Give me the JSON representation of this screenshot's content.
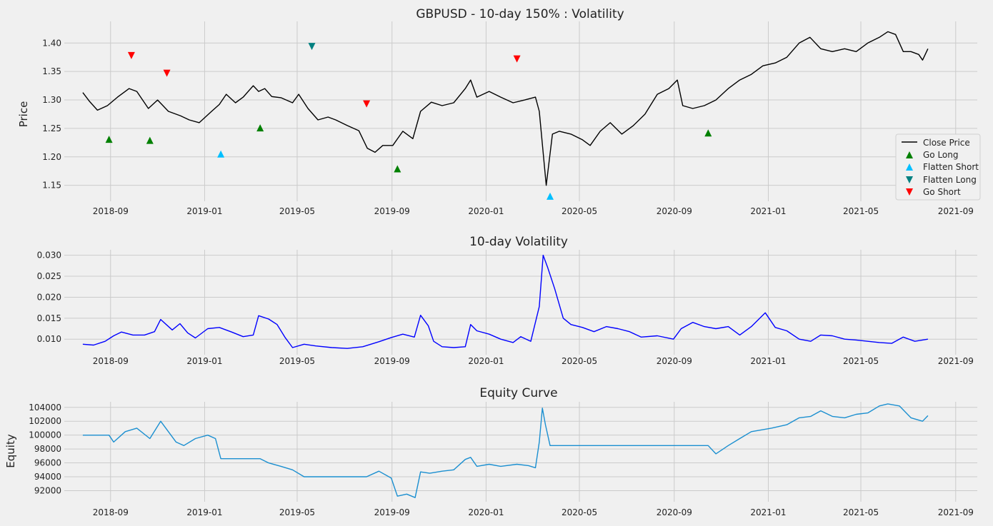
{
  "figure": {
    "background": "#f0f0f0",
    "plot_background": "#f0f0f0",
    "grid_color": "#cbcbcb"
  },
  "chart_data": [
    {
      "type": "line",
      "title": "GBPUSD - 10-day 150% : Volatility",
      "xlabel": "",
      "ylabel": "Price",
      "xlim": [
        "2018-07-03",
        "2021-09-29"
      ],
      "ylim": [
        1.122,
        1.438
      ],
      "x_ticks": [
        "2018-09-01",
        "2019-01-01",
        "2019-05-01",
        "2019-09-01",
        "2020-01-01",
        "2020-05-01",
        "2020-09-01",
        "2021-01-01",
        "2021-05-01",
        "2021-09-01"
      ],
      "x_tick_labels": [
        "2018-09",
        "2019-01",
        "2019-05",
        "2019-09",
        "2020-01",
        "2020-05",
        "2020-09",
        "2021-01",
        "2021-05",
        "2021-09"
      ],
      "y_ticks": [
        1.15,
        1.2,
        1.25,
        1.3,
        1.35,
        1.4
      ],
      "y_tick_labels": [
        "1.15",
        "1.20",
        "1.25",
        "1.30",
        "1.35",
        "1.40"
      ],
      "grid": true,
      "legend": "right",
      "series": [
        {
          "name": "Close Price",
          "color": "#000000",
          "kind": "line",
          "x": [
            "2018-07-27",
            "2018-08-05",
            "2018-08-15",
            "2018-08-28",
            "2018-09-10",
            "2018-09-25",
            "2018-10-05",
            "2018-10-20",
            "2018-11-01",
            "2018-11-15",
            "2018-12-01",
            "2018-12-12",
            "2018-12-25",
            "2019-01-10",
            "2019-01-20",
            "2019-01-29",
            "2019-02-10",
            "2019-02-20",
            "2019-03-05",
            "2019-03-12",
            "2019-03-20",
            "2019-03-29",
            "2019-04-10",
            "2019-04-25",
            "2019-05-03",
            "2019-05-15",
            "2019-05-28",
            "2019-06-10",
            "2019-06-20",
            "2019-07-05",
            "2019-07-20",
            "2019-07-31",
            "2019-08-10",
            "2019-08-20",
            "2019-09-02",
            "2019-09-15",
            "2019-09-28",
            "2019-10-08",
            "2019-10-22",
            "2019-11-05",
            "2019-11-20",
            "2019-12-05",
            "2019-12-12",
            "2019-12-20",
            "2020-01-05",
            "2020-01-20",
            "2020-02-05",
            "2020-02-20",
            "2020-03-05",
            "2020-03-10",
            "2020-03-19",
            "2020-03-27",
            "2020-04-05",
            "2020-04-20",
            "2020-05-05",
            "2020-05-15",
            "2020-05-28",
            "2020-06-10",
            "2020-06-25",
            "2020-07-10",
            "2020-07-25",
            "2020-08-10",
            "2020-08-25",
            "2020-09-05",
            "2020-09-12",
            "2020-09-25",
            "2020-10-10",
            "2020-10-25",
            "2020-11-10",
            "2020-11-25",
            "2020-12-10",
            "2020-12-25",
            "2021-01-10",
            "2021-01-25",
            "2021-02-10",
            "2021-02-24",
            "2021-03-10",
            "2021-03-25",
            "2021-04-10",
            "2021-04-25",
            "2021-05-10",
            "2021-05-25",
            "2021-06-05",
            "2021-06-15",
            "2021-06-25",
            "2021-07-05",
            "2021-07-15",
            "2021-07-20",
            "2021-07-27"
          ],
          "y": [
            1.313,
            1.297,
            1.282,
            1.29,
            1.305,
            1.32,
            1.315,
            1.285,
            1.3,
            1.28,
            1.272,
            1.265,
            1.26,
            1.28,
            1.292,
            1.31,
            1.295,
            1.305,
            1.325,
            1.315,
            1.32,
            1.306,
            1.304,
            1.295,
            1.31,
            1.285,
            1.265,
            1.27,
            1.265,
            1.255,
            1.246,
            1.215,
            1.208,
            1.22,
            1.22,
            1.245,
            1.232,
            1.28,
            1.296,
            1.29,
            1.295,
            1.32,
            1.335,
            1.305,
            1.315,
            1.305,
            1.295,
            1.3,
            1.305,
            1.28,
            1.15,
            1.24,
            1.245,
            1.24,
            1.23,
            1.22,
            1.245,
            1.26,
            1.24,
            1.255,
            1.275,
            1.31,
            1.32,
            1.335,
            1.29,
            1.285,
            1.29,
            1.3,
            1.32,
            1.335,
            1.345,
            1.36,
            1.365,
            1.375,
            1.4,
            1.41,
            1.39,
            1.385,
            1.39,
            1.385,
            1.4,
            1.41,
            1.42,
            1.415,
            1.385,
            1.385,
            1.38,
            1.37,
            1.39
          ]
        },
        {
          "name": "Go Long",
          "color": "#008000",
          "kind": "markers",
          "marker": "triangle-up",
          "x": [
            "2018-08-30",
            "2018-10-22",
            "2019-03-14",
            "2019-09-08",
            "2020-10-15"
          ],
          "y": [
            1.231,
            1.229,
            1.251,
            1.179,
            1.242
          ]
        },
        {
          "name": "Flatten Short",
          "color": "#00bfff",
          "kind": "markers",
          "marker": "triangle-up",
          "x": [
            "2019-01-22",
            "2020-03-24"
          ],
          "y": [
            1.205,
            1.131
          ]
        },
        {
          "name": "Flatten Long",
          "color": "#008080",
          "kind": "markers",
          "marker": "triangle-down",
          "x": [
            "2019-05-20"
          ],
          "y": [
            1.394
          ]
        },
        {
          "name": "Go Short",
          "color": "#ff0000",
          "kind": "markers",
          "marker": "triangle-down",
          "x": [
            "2018-09-28",
            "2018-11-13",
            "2019-07-30",
            "2020-02-10"
          ],
          "y": [
            1.378,
            1.347,
            1.293,
            1.372
          ]
        }
      ]
    },
    {
      "type": "line",
      "title": "10-day Volatility",
      "xlabel": "",
      "ylabel": "",
      "xlim": [
        "2018-07-03",
        "2021-09-29"
      ],
      "ylim": [
        0.0063,
        0.0313
      ],
      "x_ticks": [
        "2018-09-01",
        "2019-01-01",
        "2019-05-01",
        "2019-09-01",
        "2020-01-01",
        "2020-05-01",
        "2020-09-01",
        "2021-01-01",
        "2021-05-01",
        "2021-09-01"
      ],
      "x_tick_labels": [
        "2018-09",
        "2019-01",
        "2019-05",
        "2019-09",
        "2020-01",
        "2020-05",
        "2020-09",
        "2021-01",
        "2021-05",
        "2021-09"
      ],
      "y_ticks": [
        0.01,
        0.015,
        0.02,
        0.025,
        0.03
      ],
      "y_tick_labels": [
        "0.010",
        "0.015",
        "0.020",
        "0.025",
        "0.030"
      ],
      "grid": true,
      "series": [
        {
          "name": "",
          "color": "#0000ff",
          "kind": "line",
          "x": [
            "2018-07-27",
            "2018-08-10",
            "2018-08-25",
            "2018-09-05",
            "2018-09-15",
            "2018-09-30",
            "2018-10-15",
            "2018-10-28",
            "2018-11-05",
            "2018-11-20",
            "2018-11-30",
            "2018-12-10",
            "2018-12-20",
            "2019-01-05",
            "2019-01-20",
            "2019-02-05",
            "2019-02-20",
            "2019-03-05",
            "2019-03-12",
            "2019-03-25",
            "2019-04-05",
            "2019-04-15",
            "2019-04-25",
            "2019-05-10",
            "2019-05-25",
            "2019-06-15",
            "2019-07-05",
            "2019-07-25",
            "2019-08-15",
            "2019-08-31",
            "2019-09-15",
            "2019-09-30",
            "2019-10-08",
            "2019-10-18",
            "2019-10-25",
            "2019-11-05",
            "2019-11-20",
            "2019-12-05",
            "2019-12-12",
            "2019-12-20",
            "2020-01-05",
            "2020-01-20",
            "2020-02-05",
            "2020-02-15",
            "2020-02-28",
            "2020-03-10",
            "2020-03-15",
            "2020-03-21",
            "2020-03-30",
            "2020-04-10",
            "2020-04-20",
            "2020-05-05",
            "2020-05-20",
            "2020-06-05",
            "2020-06-20",
            "2020-07-05",
            "2020-07-20",
            "2020-08-10",
            "2020-08-31",
            "2020-09-10",
            "2020-09-25",
            "2020-10-10",
            "2020-10-25",
            "2020-11-10",
            "2020-11-25",
            "2020-12-10",
            "2020-12-28",
            "2021-01-10",
            "2021-01-25",
            "2021-02-10",
            "2021-02-25",
            "2021-03-10",
            "2021-03-25",
            "2021-04-10",
            "2021-04-25",
            "2021-05-10",
            "2021-05-25",
            "2021-06-10",
            "2021-06-25",
            "2021-07-10",
            "2021-07-27"
          ],
          "y": [
            0.0088,
            0.0086,
            0.0095,
            0.0108,
            0.0117,
            0.011,
            0.011,
            0.0118,
            0.0147,
            0.0122,
            0.0137,
            0.0115,
            0.0103,
            0.0125,
            0.0128,
            0.0117,
            0.0106,
            0.011,
            0.0156,
            0.0148,
            0.0135,
            0.0105,
            0.008,
            0.0088,
            0.0084,
            0.008,
            0.0078,
            0.0082,
            0.0094,
            0.0104,
            0.0112,
            0.0105,
            0.0157,
            0.0132,
            0.0095,
            0.0082,
            0.008,
            0.0082,
            0.0135,
            0.012,
            0.0112,
            0.01,
            0.0092,
            0.0106,
            0.0095,
            0.0178,
            0.03,
            0.027,
            0.022,
            0.015,
            0.0135,
            0.0128,
            0.0118,
            0.013,
            0.0125,
            0.0118,
            0.0105,
            0.0108,
            0.01,
            0.0125,
            0.014,
            0.013,
            0.0125,
            0.013,
            0.011,
            0.013,
            0.0163,
            0.0128,
            0.012,
            0.01,
            0.0095,
            0.011,
            0.0108,
            0.01,
            0.0098,
            0.0095,
            0.0092,
            0.009,
            0.0105,
            0.0095,
            0.01
          ]
        }
      ]
    },
    {
      "type": "line",
      "title": "Equity Curve",
      "xlabel": "",
      "ylabel": "Equity",
      "xlim": [
        "2018-07-03",
        "2021-09-29"
      ],
      "ylim": [
        90400,
        104800
      ],
      "x_ticks": [
        "2018-09-01",
        "2019-01-01",
        "2019-05-01",
        "2019-09-01",
        "2020-01-01",
        "2020-05-01",
        "2020-09-01",
        "2021-01-01",
        "2021-05-01",
        "2021-09-01"
      ],
      "x_tick_labels": [
        "2018-09",
        "2019-01",
        "2019-05",
        "2019-09",
        "2020-01",
        "2020-05",
        "2020-09",
        "2021-01",
        "2021-05",
        "2021-09"
      ],
      "y_ticks": [
        92000,
        94000,
        96000,
        98000,
        100000,
        102000,
        104000
      ],
      "y_tick_labels": [
        "92000",
        "94000",
        "96000",
        "98000",
        "100000",
        "102000",
        "104000"
      ],
      "grid": true,
      "series": [
        {
          "name": "",
          "color": "#1b8fd0",
          "kind": "line",
          "x": [
            "2018-07-27",
            "2018-08-30",
            "2018-09-05",
            "2018-09-20",
            "2018-10-05",
            "2018-10-22",
            "2018-11-05",
            "2018-11-15",
            "2018-11-25",
            "2018-12-05",
            "2018-12-20",
            "2019-01-05",
            "2019-01-15",
            "2019-01-22",
            "2019-02-05",
            "2019-02-25",
            "2019-03-14",
            "2019-03-25",
            "2019-04-10",
            "2019-04-25",
            "2019-05-10",
            "2019-05-20",
            "2019-06-05",
            "2019-06-25",
            "2019-07-15",
            "2019-07-30",
            "2019-08-15",
            "2019-08-31",
            "2019-09-08",
            "2019-09-20",
            "2019-10-01",
            "2019-10-08",
            "2019-10-20",
            "2019-11-05",
            "2019-11-20",
            "2019-12-05",
            "2019-12-12",
            "2019-12-20",
            "2020-01-05",
            "2020-01-20",
            "2020-02-10",
            "2020-02-25",
            "2020-03-05",
            "2020-03-10",
            "2020-03-14",
            "2020-03-18",
            "2020-03-24",
            "2020-04-15",
            "2020-06-01",
            "2020-08-01",
            "2020-10-15",
            "2020-10-25",
            "2020-11-10",
            "2020-11-25",
            "2020-12-10",
            "2021-01-05",
            "2021-01-25",
            "2021-02-10",
            "2021-02-25",
            "2021-03-10",
            "2021-03-25",
            "2021-04-10",
            "2021-04-25",
            "2021-05-10",
            "2021-05-25",
            "2021-06-05",
            "2021-06-20",
            "2021-07-05",
            "2021-07-20",
            "2021-07-27"
          ],
          "y": [
            100000,
            100000,
            99000,
            100500,
            101000,
            99500,
            102000,
            100500,
            99000,
            98500,
            99500,
            100000,
            99500,
            96600,
            96600,
            96600,
            96600,
            96000,
            95500,
            95000,
            94000,
            94000,
            94000,
            94000,
            94000,
            94000,
            94800,
            93800,
            91200,
            91500,
            91000,
            94700,
            94500,
            94800,
            95000,
            96500,
            96800,
            95500,
            95800,
            95500,
            95800,
            95600,
            95300,
            99000,
            103900,
            101500,
            98500,
            98500,
            98500,
            98500,
            98500,
            97300,
            98500,
            99500,
            100500,
            101000,
            101500,
            102500,
            102700,
            103500,
            102700,
            102500,
            103000,
            103200,
            104200,
            104500,
            104200,
            102500,
            102000,
            102800
          ]
        }
      ]
    }
  ]
}
